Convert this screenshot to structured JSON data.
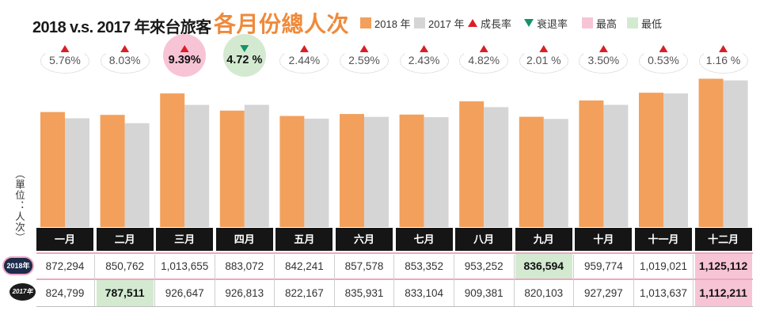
{
  "legend": [
    {
      "label": "2018 年",
      "icon": "orange-square-icon",
      "color": "#f3a05c"
    },
    {
      "label": "2017 年",
      "icon": "gray-square-icon",
      "color": "#d5d5d5"
    },
    {
      "label": "成長率",
      "icon": "red-triangle-up-icon",
      "color": "#d91f26"
    },
    {
      "label": "衰退率",
      "icon": "green-triangle-down-icon",
      "color": "#15936b"
    },
    {
      "label": "最高",
      "icon": "pink-square-icon",
      "color": "#f7c4d6"
    },
    {
      "label": "最低",
      "icon": "green-square-icon",
      "color": "#d3ead1"
    }
  ],
  "chart_data": {
    "type": "bar",
    "title": "2018 v.s. 2017 年來台旅客",
    "title_highlight": "各月份總人次",
    "ylabel": "（單位：人次）",
    "ylim": [
      0,
      1140000
    ],
    "grid": false,
    "legend": "top",
    "categories": [
      "一月",
      "二月",
      "三月",
      "四月",
      "五月",
      "六月",
      "七月",
      "八月",
      "九月",
      "十月",
      "十一月",
      "十二月"
    ],
    "series": [
      {
        "name": "2018年",
        "color": "#f3a05c",
        "values": [
          872294,
          850762,
          1013655,
          883072,
          842241,
          857578,
          853352,
          953252,
          836594,
          959774,
          1019021,
          1125112
        ]
      },
      {
        "name": "2017年",
        "color": "#d5d5d5",
        "values": [
          824799,
          787511,
          926647,
          926813,
          822167,
          835931,
          833104,
          909381,
          820103,
          927297,
          1013637,
          1112211
        ]
      }
    ],
    "growth_rate": {
      "values": [
        5.76,
        8.03,
        9.39,
        -4.72,
        2.44,
        2.59,
        2.43,
        4.82,
        2.01,
        3.5,
        0.53,
        1.16
      ],
      "labels": [
        "5.76%",
        "8.03%",
        "9.39%",
        "4.72 %",
        "2.44%",
        "2.59%",
        "2.43%",
        "4.82%",
        "2.01 %",
        "3.50%",
        "0.53%",
        "1.16 %"
      ],
      "icons": [
        "red-triangle-up-icon",
        "red-triangle-up-icon",
        "red-triangle-up-icon",
        "green-triangle-down-icon",
        "red-triangle-up-icon",
        "red-triangle-up-icon",
        "red-triangle-up-icon",
        "red-triangle-up-icon",
        "red-triangle-up-icon",
        "red-triangle-up-icon",
        "red-triangle-up-icon",
        "red-triangle-up-icon"
      ],
      "highest_index": 2,
      "lowest_index": 3
    }
  },
  "table": {
    "rows": [
      {
        "cells": [
          "872,294",
          "850,762",
          "1,013,655",
          "883,072",
          "842,241",
          "857,578",
          "853,352",
          "953,252",
          "836,594",
          "959,774",
          "1,019,021",
          "1,125,112"
        ],
        "highest_index": 11,
        "lowest_index": 8
      },
      {
        "cells": [
          "824,799",
          "787,511",
          "926,647",
          "926,813",
          "822,167",
          "835,931",
          "833,104",
          "909,381",
          "820,103",
          "927,297",
          "1,013,637",
          "1,112,211"
        ],
        "highest_index": 11,
        "lowest_index": 1
      }
    ]
  }
}
